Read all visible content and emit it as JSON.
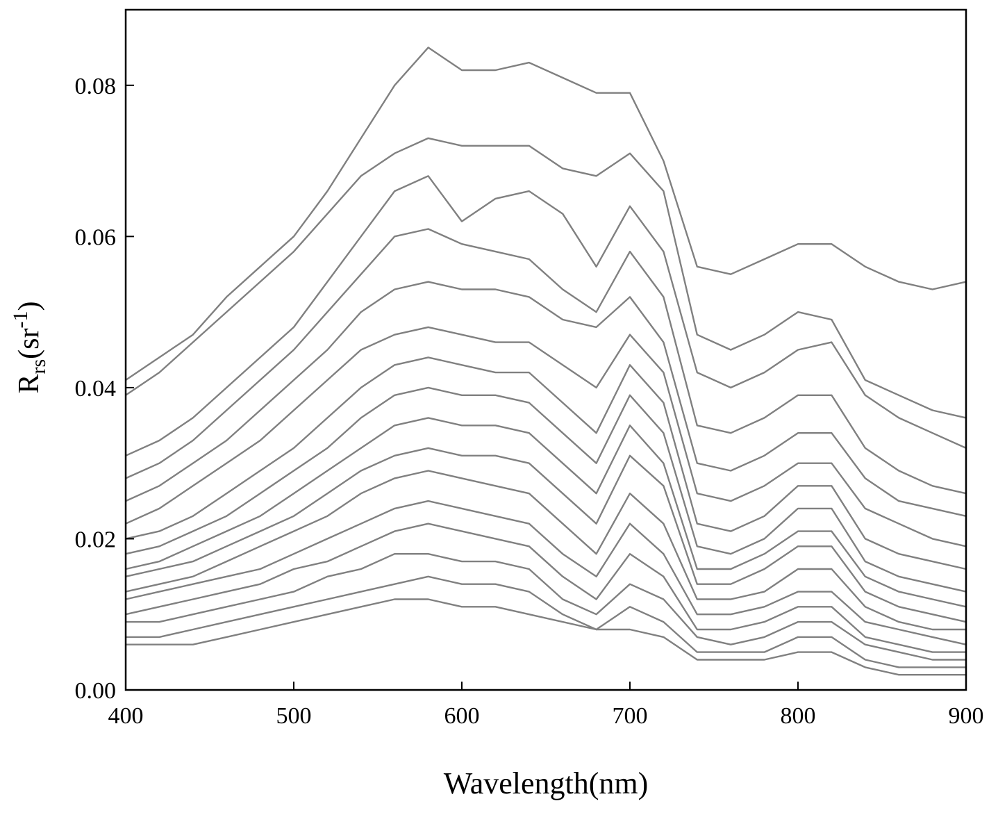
{
  "chart_data": {
    "type": "line",
    "y_label": [
      "R",
      "rs",
      "(sr",
      "-1",
      ")"
    ],
    "x_label": "Wavelength(nm)",
    "color": "#808080",
    "xlim": [
      400,
      900
    ],
    "xticks": [
      400,
      500,
      600,
      700,
      800,
      900
    ],
    "ylim": [
      0,
      0.09
    ],
    "yticks": [
      {
        "value": 0,
        "label": "0.00"
      },
      0.02,
      0.04,
      0.06,
      0.08
    ],
    "x": [
      400,
      420,
      440,
      460,
      480,
      500,
      520,
      540,
      560,
      580,
      600,
      620,
      640,
      660,
      680,
      700,
      720,
      740,
      760,
      780,
      800,
      820,
      840,
      860,
      880,
      900
    ],
    "series": [
      {
        "values": [
          0.041,
          0.044,
          0.047,
          0.052,
          0.056,
          0.06,
          0.066,
          0.073,
          0.08,
          0.085,
          0.082,
          0.082,
          0.083,
          0.081,
          0.079,
          0.079,
          0.07,
          0.056,
          0.055,
          0.057,
          0.059,
          0.059,
          0.056,
          0.054,
          0.053,
          0.054
        ]
      },
      {
        "values": [
          0.039,
          0.042,
          0.046,
          0.05,
          0.054,
          0.058,
          0.063,
          0.068,
          0.071,
          0.073,
          0.072,
          0.072,
          0.072,
          0.069,
          0.068,
          0.071,
          0.066,
          0.047,
          0.045,
          0.047,
          0.05,
          0.049,
          0.041,
          0.039,
          0.037,
          0.036
        ]
      },
      {
        "values": [
          0.031,
          0.033,
          0.036,
          0.04,
          0.044,
          0.048,
          0.054,
          0.06,
          0.066,
          0.068,
          0.062,
          0.065,
          0.066,
          0.063,
          0.056,
          0.064,
          0.058,
          0.042,
          0.04,
          0.042,
          0.045,
          0.046,
          0.039,
          0.036,
          0.034,
          0.032
        ]
      },
      {
        "values": [
          0.028,
          0.03,
          0.033,
          0.037,
          0.041,
          0.045,
          0.05,
          0.055,
          0.06,
          0.061,
          0.059,
          0.058,
          0.057,
          0.053,
          0.05,
          0.058,
          0.052,
          0.035,
          0.034,
          0.036,
          0.039,
          0.039,
          0.032,
          0.029,
          0.027,
          0.026
        ]
      },
      {
        "values": [
          0.025,
          0.027,
          0.03,
          0.033,
          0.037,
          0.041,
          0.045,
          0.05,
          0.053,
          0.054,
          0.053,
          0.053,
          0.052,
          0.049,
          0.048,
          0.052,
          0.046,
          0.03,
          0.029,
          0.031,
          0.034,
          0.034,
          0.028,
          0.025,
          0.024,
          0.023
        ]
      },
      {
        "values": [
          0.022,
          0.024,
          0.027,
          0.03,
          0.033,
          0.037,
          0.041,
          0.045,
          0.047,
          0.048,
          0.047,
          0.046,
          0.046,
          0.043,
          0.04,
          0.047,
          0.042,
          0.026,
          0.025,
          0.027,
          0.03,
          0.03,
          0.024,
          0.022,
          0.02,
          0.019
        ]
      },
      {
        "values": [
          0.02,
          0.021,
          0.023,
          0.026,
          0.029,
          0.032,
          0.036,
          0.04,
          0.043,
          0.044,
          0.043,
          0.042,
          0.042,
          0.038,
          0.034,
          0.043,
          0.038,
          0.022,
          0.021,
          0.023,
          0.027,
          0.027,
          0.02,
          0.018,
          0.017,
          0.016
        ]
      },
      {
        "values": [
          0.018,
          0.019,
          0.021,
          0.023,
          0.026,
          0.029,
          0.032,
          0.036,
          0.039,
          0.04,
          0.039,
          0.039,
          0.038,
          0.034,
          0.03,
          0.039,
          0.034,
          0.019,
          0.018,
          0.02,
          0.024,
          0.024,
          0.017,
          0.015,
          0.014,
          0.013
        ]
      },
      {
        "values": [
          0.016,
          0.017,
          0.019,
          0.021,
          0.023,
          0.026,
          0.029,
          0.032,
          0.035,
          0.036,
          0.035,
          0.035,
          0.034,
          0.03,
          0.026,
          0.035,
          0.03,
          0.016,
          0.016,
          0.018,
          0.021,
          0.021,
          0.015,
          0.013,
          0.012,
          0.011
        ]
      },
      {
        "values": [
          0.015,
          0.016,
          0.017,
          0.019,
          0.021,
          0.023,
          0.026,
          0.029,
          0.031,
          0.032,
          0.031,
          0.031,
          0.03,
          0.026,
          0.022,
          0.031,
          0.027,
          0.014,
          0.014,
          0.016,
          0.019,
          0.019,
          0.013,
          0.011,
          0.01,
          0.009
        ]
      },
      {
        "values": [
          0.013,
          0.014,
          0.015,
          0.017,
          0.019,
          0.021,
          0.023,
          0.026,
          0.028,
          0.029,
          0.028,
          0.027,
          0.026,
          0.022,
          0.018,
          0.026,
          0.022,
          0.012,
          0.012,
          0.013,
          0.016,
          0.016,
          0.011,
          0.009,
          0.008,
          0.008
        ]
      },
      {
        "values": [
          0.012,
          0.013,
          0.014,
          0.015,
          0.016,
          0.018,
          0.02,
          0.022,
          0.024,
          0.025,
          0.024,
          0.023,
          0.022,
          0.018,
          0.015,
          0.022,
          0.018,
          0.01,
          0.01,
          0.011,
          0.013,
          0.013,
          0.009,
          0.008,
          0.007,
          0.006
        ]
      },
      {
        "values": [
          0.01,
          0.011,
          0.012,
          0.013,
          0.014,
          0.016,
          0.017,
          0.019,
          0.021,
          0.022,
          0.021,
          0.02,
          0.019,
          0.015,
          0.012,
          0.018,
          0.015,
          0.008,
          0.008,
          0.009,
          0.011,
          0.011,
          0.007,
          0.006,
          0.005,
          0.005
        ]
      },
      {
        "values": [
          0.009,
          0.009,
          0.01,
          0.011,
          0.012,
          0.013,
          0.015,
          0.016,
          0.018,
          0.018,
          0.017,
          0.017,
          0.016,
          0.012,
          0.01,
          0.014,
          0.012,
          0.007,
          0.006,
          0.007,
          0.009,
          0.009,
          0.006,
          0.005,
          0.004,
          0.004
        ]
      },
      {
        "values": [
          0.007,
          0.007,
          0.008,
          0.009,
          0.01,
          0.011,
          0.012,
          0.013,
          0.014,
          0.015,
          0.014,
          0.014,
          0.013,
          0.01,
          0.008,
          0.011,
          0.009,
          0.005,
          0.005,
          0.005,
          0.007,
          0.007,
          0.004,
          0.003,
          0.003,
          0.003
        ]
      },
      {
        "values": [
          0.006,
          0.006,
          0.006,
          0.007,
          0.008,
          0.009,
          0.01,
          0.011,
          0.012,
          0.012,
          0.011,
          0.011,
          0.01,
          0.009,
          0.008,
          0.008,
          0.007,
          0.004,
          0.004,
          0.004,
          0.005,
          0.005,
          0.003,
          0.002,
          0.002,
          0.002
        ]
      }
    ]
  }
}
